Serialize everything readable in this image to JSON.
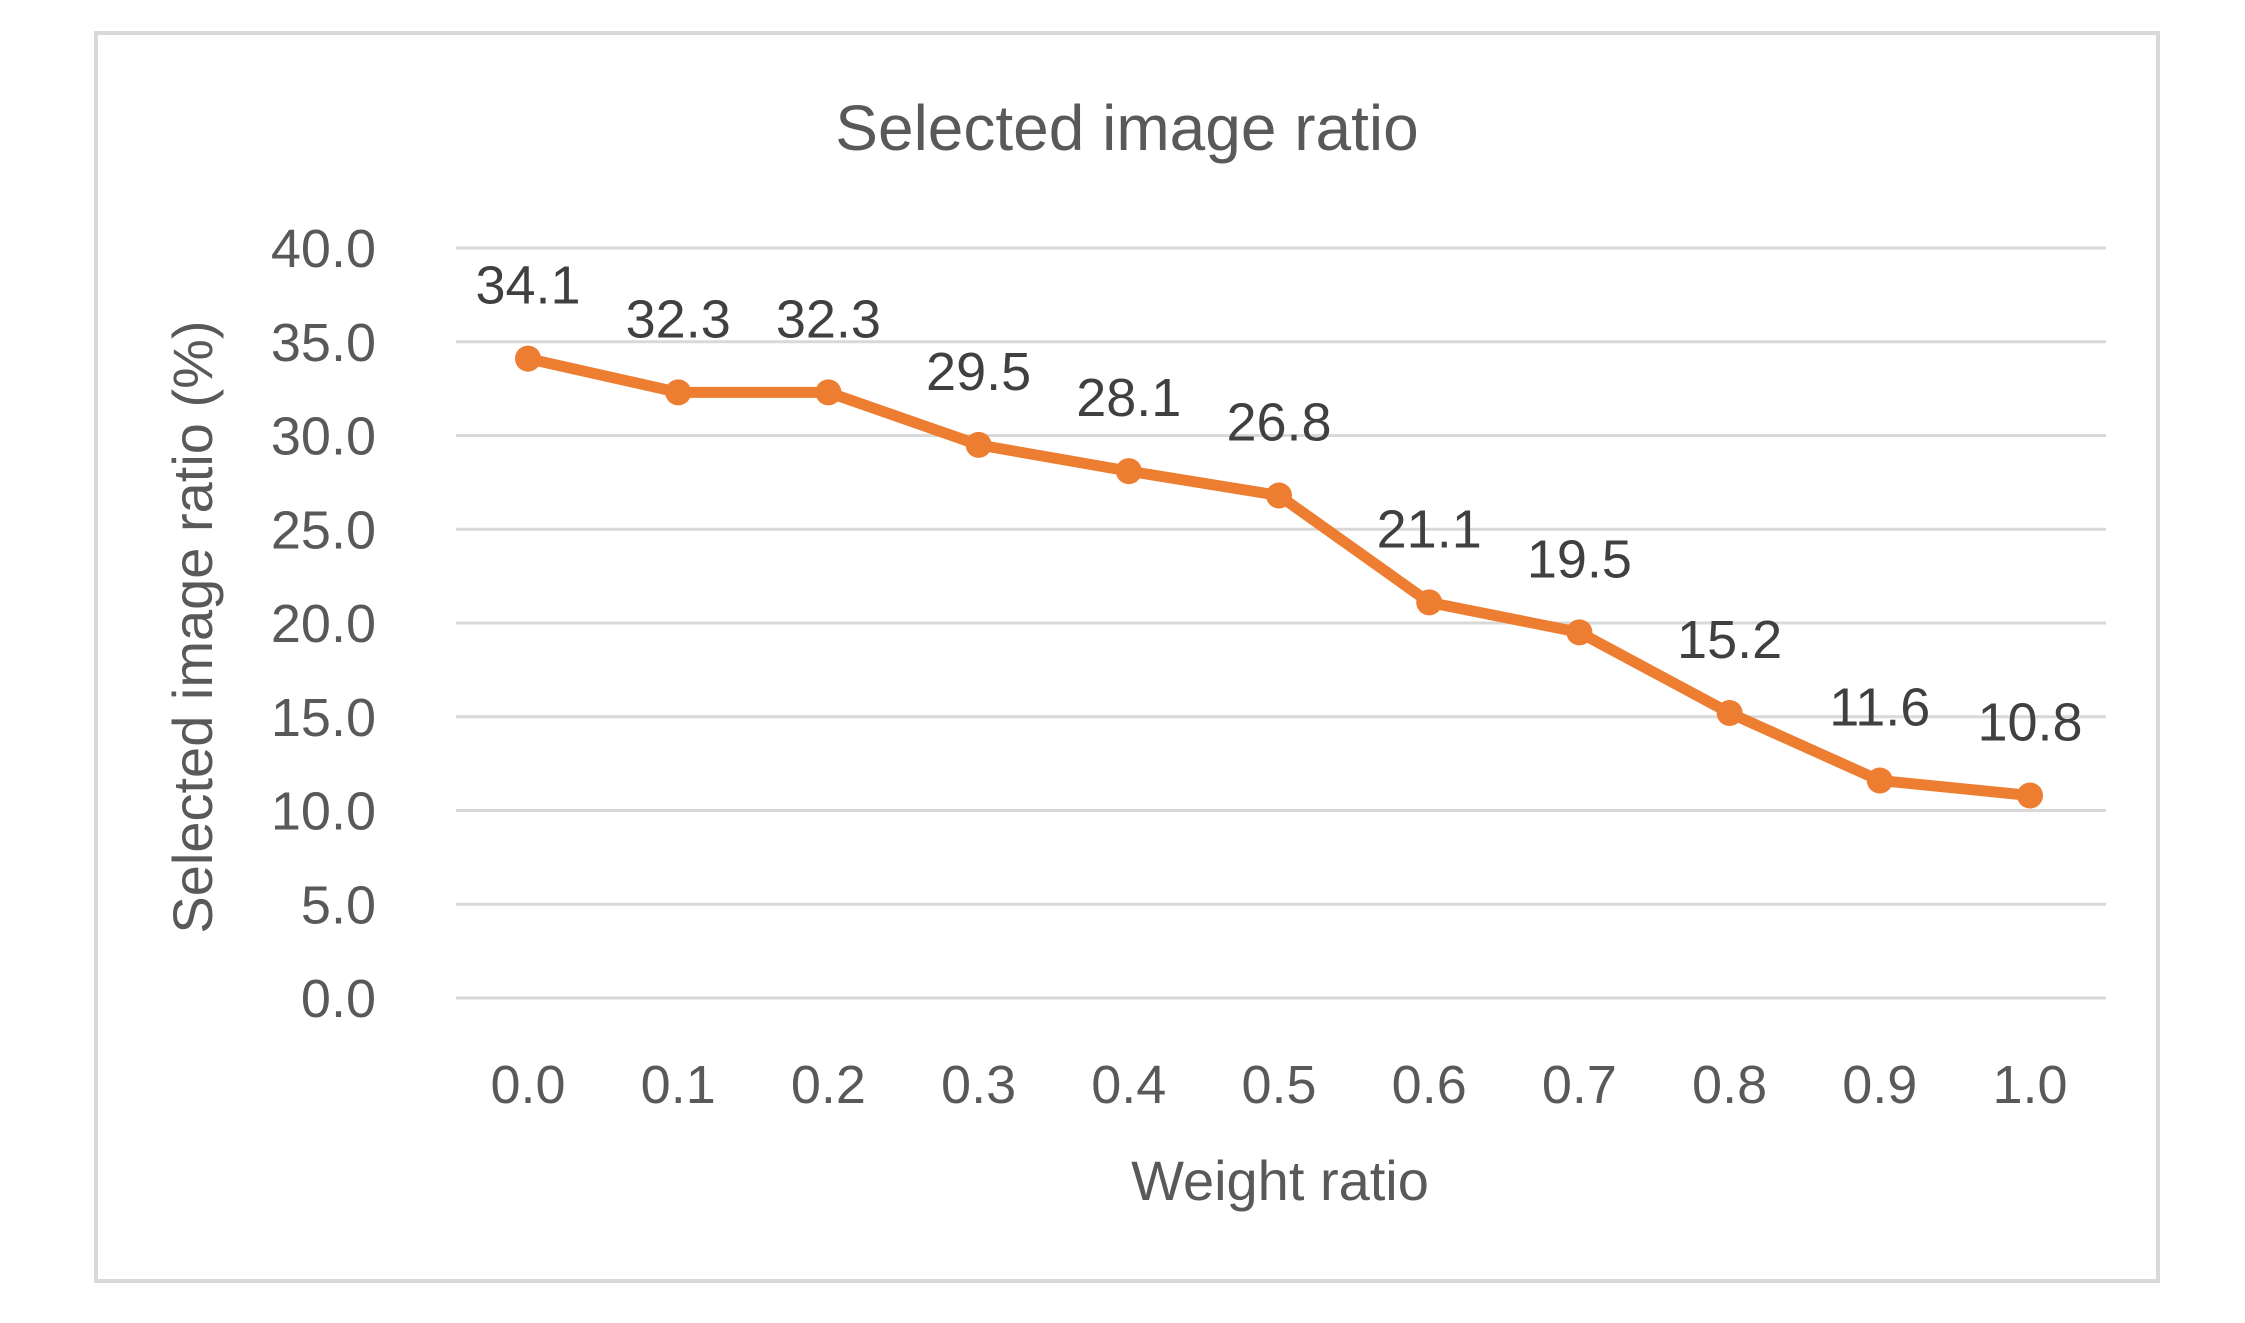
{
  "chart_data": {
    "type": "line",
    "title": "Selected image ratio",
    "xlabel": "Weight ratio",
    "ylabel": "Selected image ratio (%)",
    "x": [
      "0.0",
      "0.1",
      "0.2",
      "0.3",
      "0.4",
      "0.5",
      "0.6",
      "0.7",
      "0.8",
      "0.9",
      "1.0"
    ],
    "series": [
      {
        "values": [
          34.1,
          32.3,
          32.3,
          29.5,
          28.1,
          26.8,
          21.1,
          19.5,
          15.2,
          11.6,
          10.8
        ],
        "color": "#ED7D31",
        "marker": "circle"
      }
    ],
    "data_labels": [
      "34.1",
      "32.3",
      "32.3",
      "29.5",
      "28.1",
      "26.8",
      "21.1",
      "19.5",
      "15.2",
      "11.6",
      "10.8"
    ],
    "yticks": [
      "0.0",
      "5.0",
      "10.0",
      "15.0",
      "20.0",
      "25.0",
      "30.0",
      "35.0",
      "40.0"
    ],
    "ylim": [
      0,
      40
    ],
    "grid": true,
    "legend": "none"
  }
}
